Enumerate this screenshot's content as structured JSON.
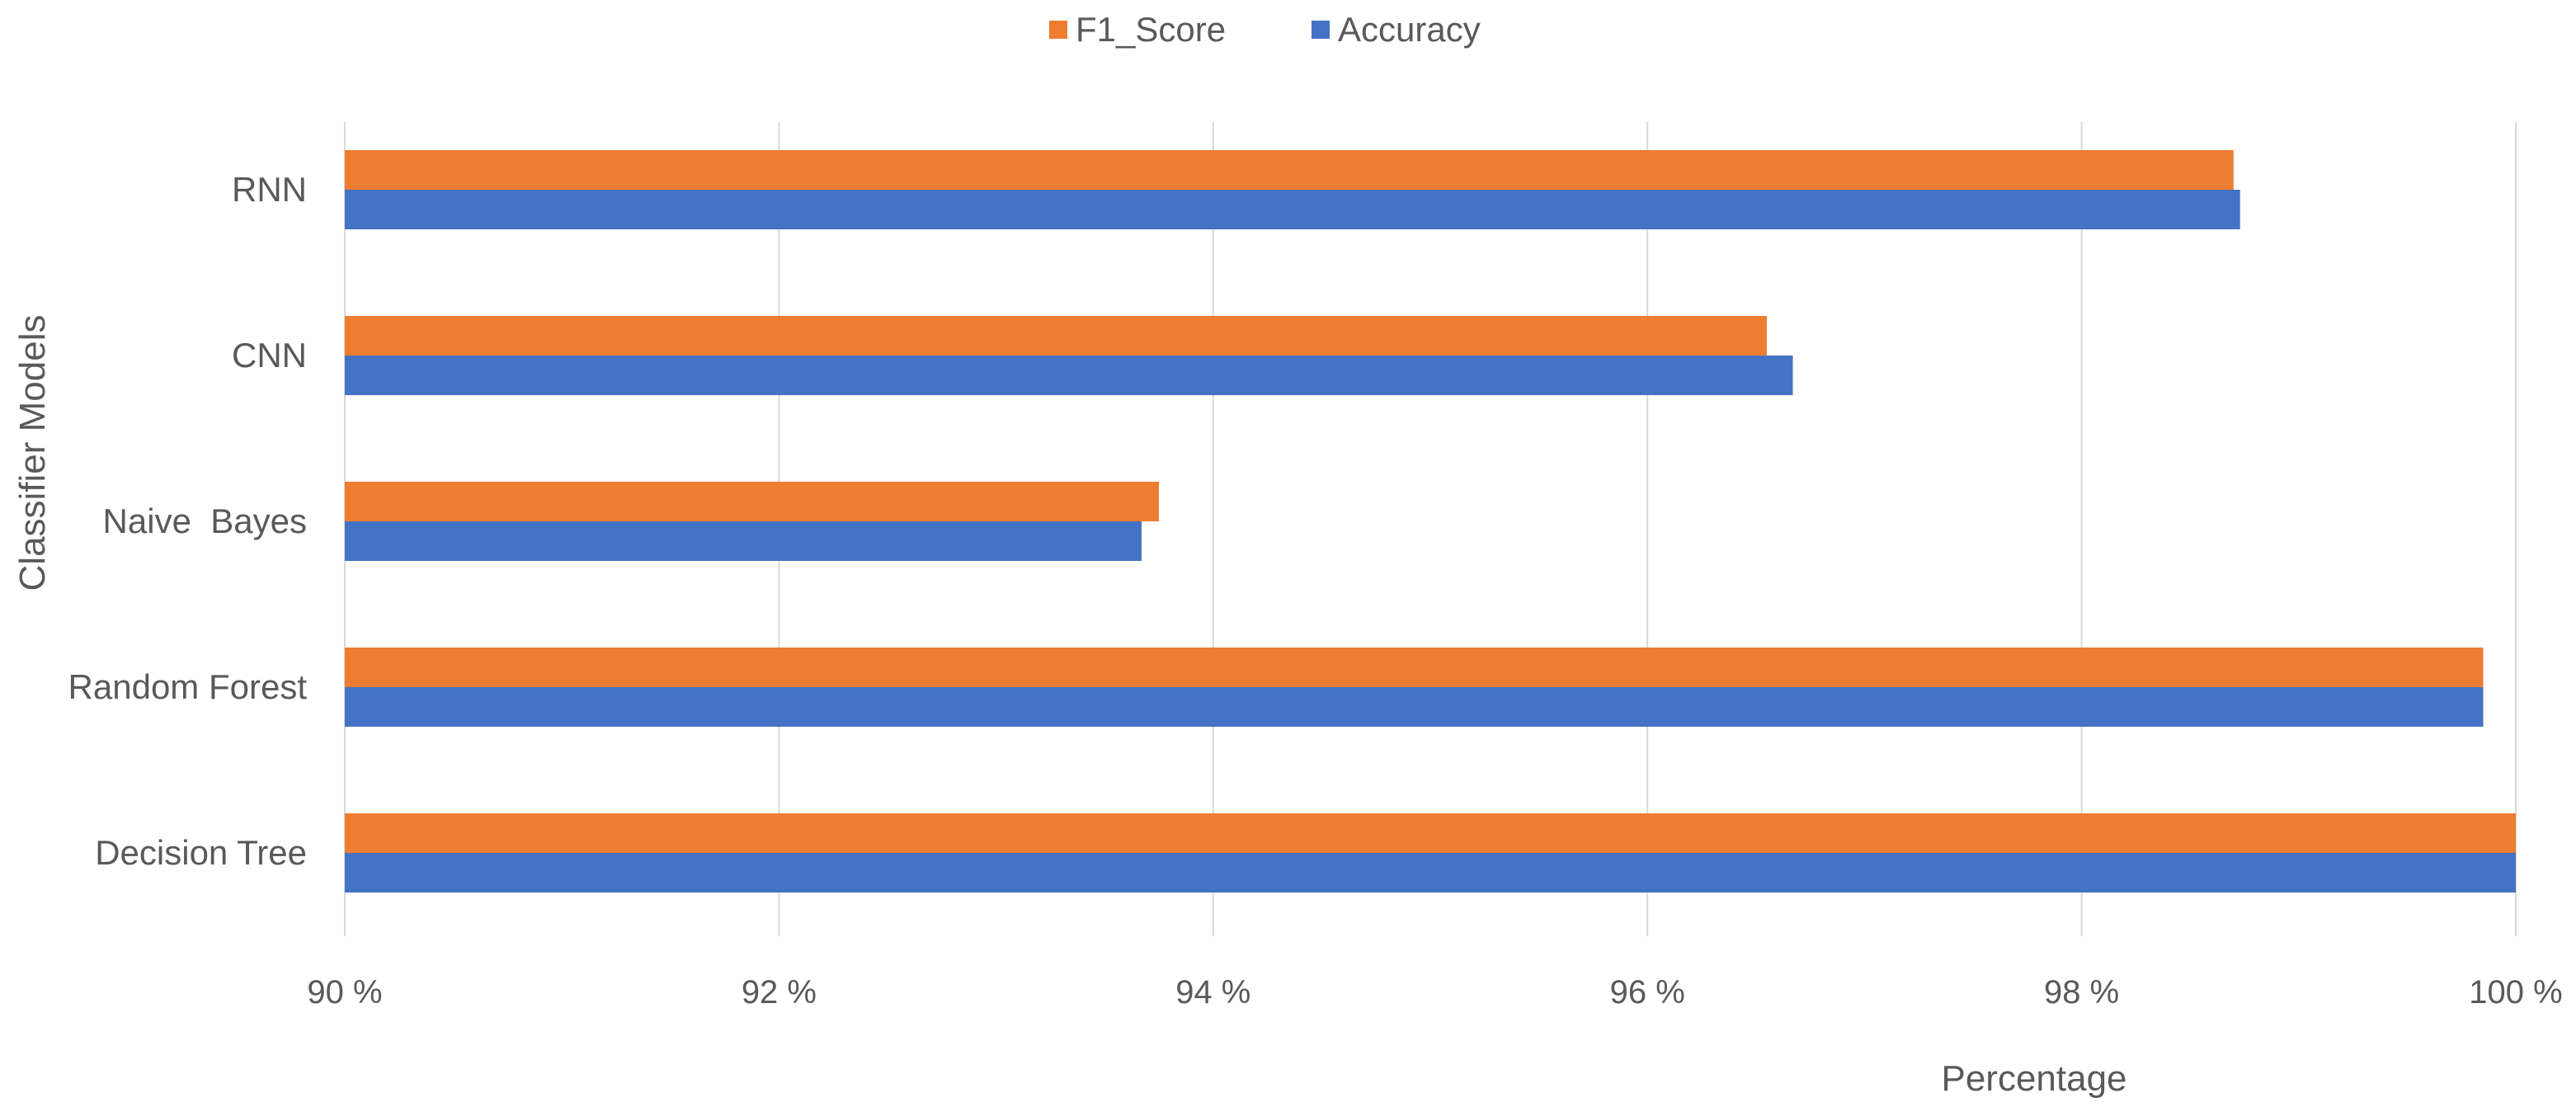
{
  "colors": {
    "f1_score": "#ED7D31",
    "accuracy": "#4472C4",
    "gridline": "#D9D9D9",
    "text": "#595959"
  },
  "legend": {
    "f1_label": "F1_Score",
    "accuracy_label": "Accuracy"
  },
  "chart_data": {
    "type": "bar",
    "orientation": "horizontal",
    "title": "",
    "xlabel": "Percentage",
    "ylabel": "Classifier Models",
    "categories": [
      "RNN",
      "CNN",
      "Naive  Bayes",
      "Random Forest",
      "Decision Tree"
    ],
    "series": [
      {
        "name": "F1_Score",
        "values": [
          98.7,
          96.55,
          93.75,
          99.85,
          100.0
        ]
      },
      {
        "name": "Accuracy",
        "values": [
          98.73,
          96.67,
          93.67,
          99.85,
          100.0
        ]
      }
    ],
    "xlim": [
      90,
      100
    ],
    "xticks": [
      90,
      92,
      94,
      96,
      98,
      100
    ],
    "xtick_labels": [
      "90 %",
      "92 %",
      "94 %",
      "96 %",
      "98 %",
      "100 %"
    ],
    "grid": true,
    "legend_position": "top-center"
  }
}
